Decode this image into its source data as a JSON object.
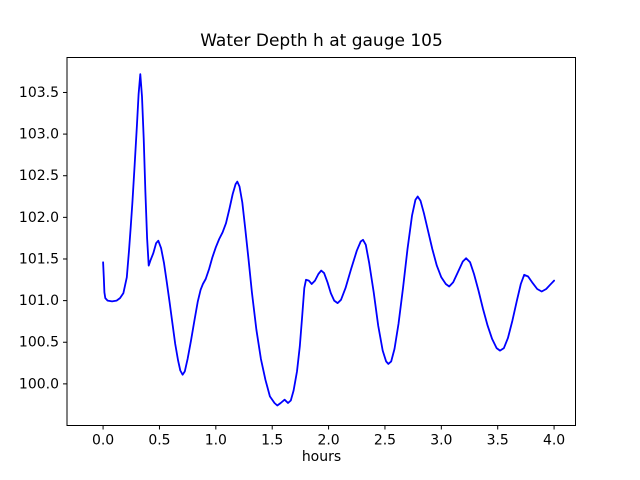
{
  "figure": {
    "background": "#ffffff"
  },
  "chart_data": {
    "type": "line",
    "title": "Water Depth h at gauge 105",
    "xlabel": "hours",
    "ylabel": "",
    "grid": false,
    "legend": null,
    "line_color": "#0000ff",
    "xlim": [
      -0.32,
      4.19
    ],
    "ylim": [
      99.5,
      103.92
    ],
    "xticks": {
      "values": [
        0.0,
        0.5,
        1.0,
        1.5,
        2.0,
        2.5,
        3.0,
        3.5,
        4.0
      ],
      "labels": [
        "0.0",
        "0.5",
        "1.0",
        "1.5",
        "2.0",
        "2.5",
        "3.0",
        "3.5",
        "4.0"
      ]
    },
    "yticks": {
      "values": [
        100.0,
        100.5,
        101.0,
        101.5,
        102.0,
        102.5,
        103.0,
        103.5
      ],
      "labels": [
        "100.0",
        "100.5",
        "101.0",
        "101.5",
        "102.0",
        "102.5",
        "103.0",
        "103.5"
      ]
    },
    "series": [
      {
        "name": "h",
        "color": "#0000ff",
        "x": [
          0.0,
          0.006,
          0.012,
          0.02,
          0.04,
          0.08,
          0.12,
          0.15,
          0.18,
          0.21,
          0.23,
          0.245,
          0.26,
          0.28,
          0.3,
          0.315,
          0.33,
          0.345,
          0.36,
          0.375,
          0.39,
          0.405,
          0.42,
          0.445,
          0.47,
          0.49,
          0.515,
          0.54,
          0.565,
          0.59,
          0.615,
          0.64,
          0.665,
          0.685,
          0.705,
          0.725,
          0.75,
          0.78,
          0.81,
          0.84,
          0.865,
          0.885,
          0.91,
          0.94,
          0.97,
          1.0,
          1.03,
          1.06,
          1.09,
          1.12,
          1.15,
          1.175,
          1.19,
          1.21,
          1.235,
          1.26,
          1.29,
          1.32,
          1.36,
          1.4,
          1.44,
          1.48,
          1.52,
          1.545,
          1.575,
          1.61,
          1.64,
          1.665,
          1.69,
          1.72,
          1.745,
          1.765,
          1.785,
          1.8,
          1.825,
          1.85,
          1.88,
          1.91,
          1.935,
          1.96,
          1.99,
          2.02,
          2.05,
          2.08,
          2.11,
          2.15,
          2.2,
          2.25,
          2.285,
          2.305,
          2.33,
          2.36,
          2.4,
          2.44,
          2.48,
          2.51,
          2.53,
          2.555,
          2.585,
          2.62,
          2.66,
          2.7,
          2.74,
          2.77,
          2.79,
          2.815,
          2.845,
          2.88,
          2.92,
          2.96,
          3.0,
          3.04,
          3.07,
          3.105,
          3.15,
          3.19,
          3.22,
          3.255,
          3.29,
          3.33,
          3.37,
          3.41,
          3.45,
          3.49,
          3.52,
          3.555,
          3.59,
          3.63,
          3.67,
          3.705,
          3.735,
          3.77,
          3.81,
          3.85,
          3.89,
          3.93,
          3.965,
          4.0
        ],
        "y": [
          101.46,
          101.28,
          101.1,
          101.03,
          101.0,
          100.99,
          101.0,
          101.03,
          101.09,
          101.28,
          101.6,
          101.88,
          102.18,
          102.62,
          103.1,
          103.48,
          103.72,
          103.45,
          102.95,
          102.3,
          101.75,
          101.42,
          101.48,
          101.57,
          101.69,
          101.72,
          101.63,
          101.45,
          101.22,
          100.98,
          100.73,
          100.48,
          100.28,
          100.16,
          100.11,
          100.15,
          100.3,
          100.52,
          100.76,
          100.99,
          101.13,
          101.2,
          101.26,
          101.38,
          101.52,
          101.64,
          101.74,
          101.82,
          101.93,
          102.1,
          102.28,
          102.4,
          102.43,
          102.37,
          102.18,
          101.88,
          101.5,
          101.1,
          100.65,
          100.3,
          100.05,
          99.85,
          99.77,
          99.74,
          99.77,
          99.81,
          99.77,
          99.8,
          99.92,
          100.15,
          100.45,
          100.8,
          101.15,
          101.25,
          101.24,
          101.2,
          101.24,
          101.32,
          101.36,
          101.33,
          101.22,
          101.09,
          101.0,
          100.97,
          101.01,
          101.15,
          101.38,
          101.6,
          101.71,
          101.73,
          101.67,
          101.45,
          101.1,
          100.7,
          100.4,
          100.27,
          100.24,
          100.27,
          100.42,
          100.72,
          101.15,
          101.62,
          102.02,
          102.21,
          102.25,
          102.2,
          102.05,
          101.85,
          101.62,
          101.42,
          101.28,
          101.2,
          101.17,
          101.22,
          101.35,
          101.47,
          101.51,
          101.46,
          101.32,
          101.12,
          100.9,
          100.7,
          100.54,
          100.43,
          100.4,
          100.43,
          100.55,
          100.76,
          101.0,
          101.2,
          101.31,
          101.29,
          101.21,
          101.14,
          101.11,
          101.14,
          101.19,
          101.24
        ]
      }
    ]
  }
}
